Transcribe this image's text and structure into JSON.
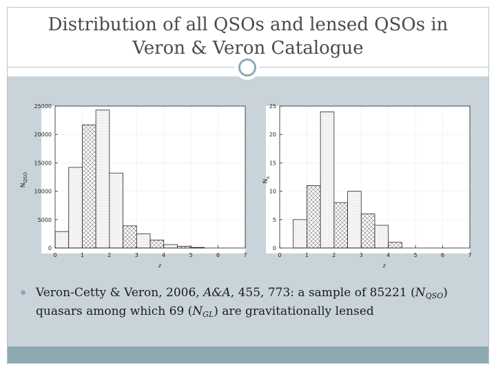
{
  "slide": {
    "title_line1": "Distribution of all QSOs and lensed QSOs in",
    "title_line2": "Veron & Veron Catalogue",
    "bullet": {
      "part1": "Veron-Cetty & Veron, 2006, ",
      "journal": "A&A",
      "part2": ", 455, 773: a sample of 85221 (",
      "n_qso": "N",
      "n_qso_sub": "QSO",
      "part3": ")",
      "part4": "quasars among which 69 (",
      "n_gl": "N",
      "n_gl_sub": "GL",
      "part5": ") are gravitationally lensed"
    },
    "colors": {
      "accent": "#8fa9b3",
      "content_bg": "#c8d3da",
      "title": "#4a4a4a"
    }
  },
  "chart_data": [
    {
      "type": "bar",
      "title": "",
      "xlabel": "z",
      "ylabel_main": "N",
      "ylabel_sub": "QSO",
      "xlim": [
        0,
        7
      ],
      "ylim": [
        0,
        25000
      ],
      "xticks": [
        0,
        1,
        2,
        3,
        4,
        5,
        6,
        7
      ],
      "yticks": [
        0,
        5000,
        10000,
        15000,
        20000,
        25000
      ],
      "bin_edges": [
        0,
        0.5,
        1,
        1.5,
        2,
        2.5,
        3,
        3.5,
        4,
        4.5,
        5,
        5.5
      ],
      "values": [
        2900,
        14200,
        21700,
        24300,
        13200,
        3900,
        2500,
        1400,
        600,
        300,
        100
      ],
      "pattern_sequence": [
        "dots",
        "dots",
        "cross",
        "dots",
        "dots",
        "cross",
        "dots",
        "cross",
        "dots",
        "cross",
        "dots"
      ]
    },
    {
      "type": "bar",
      "title": "",
      "xlabel": "z",
      "ylabel_main": "N",
      "ylabel_sub": "s",
      "xlim": [
        0,
        7
      ],
      "ylim": [
        0,
        25
      ],
      "xticks": [
        0,
        1,
        2,
        3,
        4,
        5,
        6,
        7
      ],
      "yticks": [
        0,
        5,
        10,
        15,
        20,
        25
      ],
      "bin_edges": [
        0.5,
        1,
        1.5,
        2,
        2.5,
        3,
        3.5,
        4,
        4.5
      ],
      "values": [
        5,
        11,
        24,
        8,
        10,
        6,
        4,
        1
      ],
      "pattern_sequence": [
        "dots",
        "cross",
        "dots",
        "cross",
        "dots",
        "cross",
        "dots",
        "cross"
      ]
    }
  ]
}
